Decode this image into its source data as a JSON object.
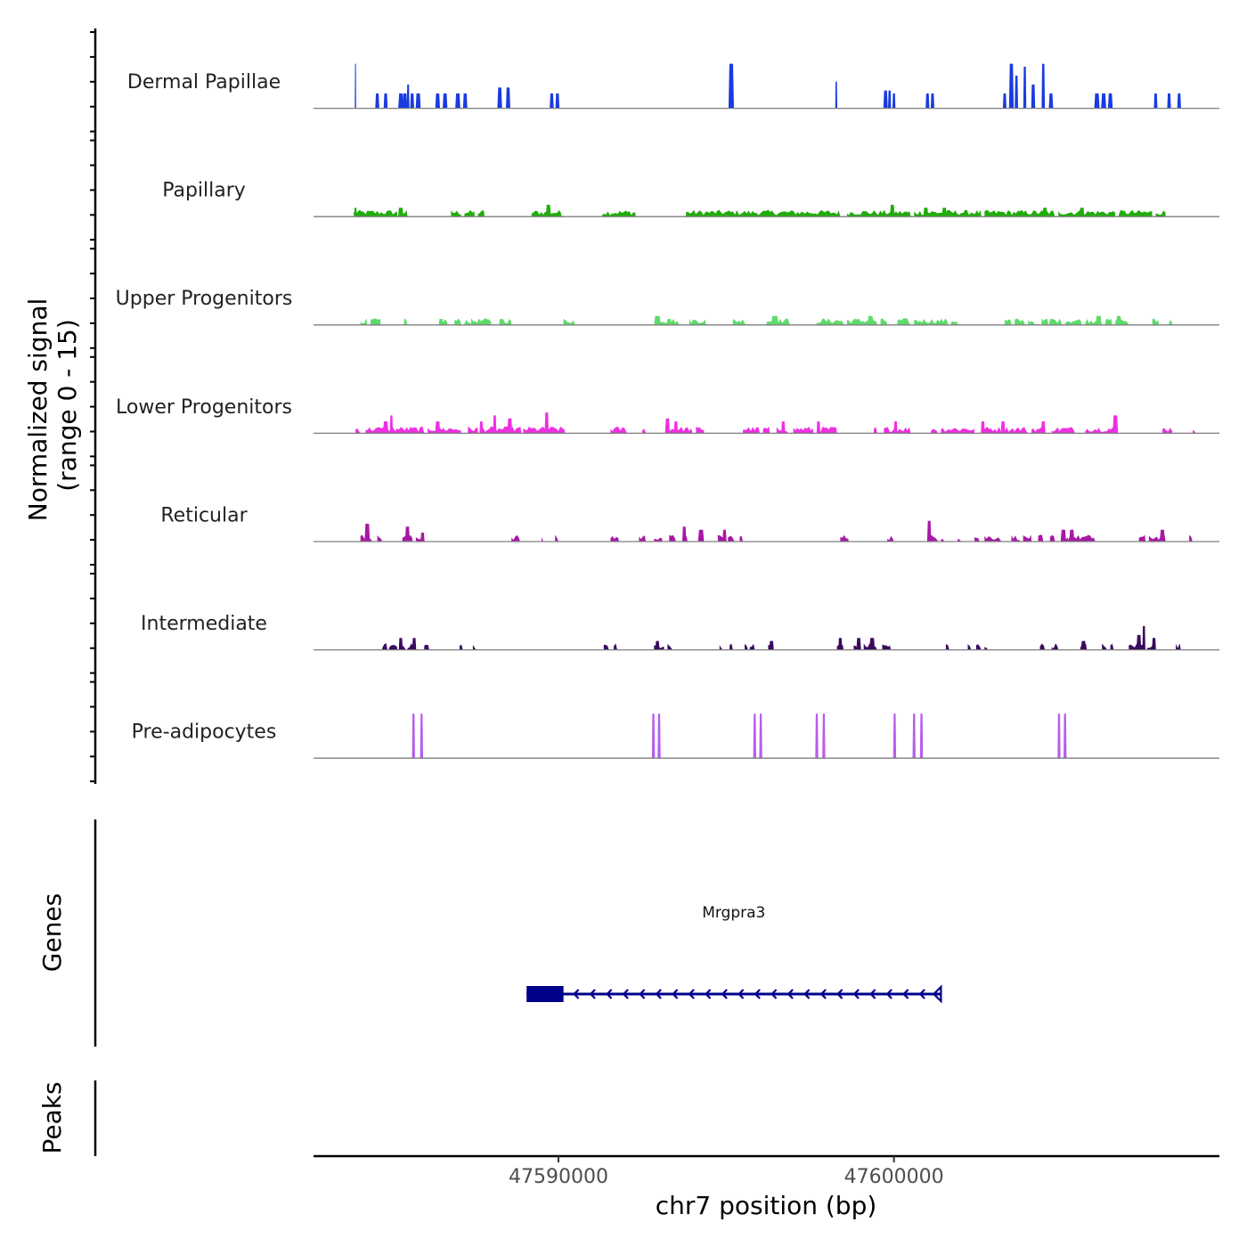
{
  "chart_data": {
    "type": "area",
    "y_axis_label_line1": "Normalized signal",
    "y_axis_label_line2": "(range 0 - 15)",
    "y_range": [
      0,
      15
    ],
    "x_axis_label": "chr7 position (bp)",
    "x_range": [
      47582700,
      47609700
    ],
    "x_ticks": [
      {
        "value": 47590000,
        "label": "47590000"
      },
      {
        "value": 47600000,
        "label": "47600000"
      }
    ],
    "genes_label": "Genes",
    "peaks_label": "Peaks",
    "gene": {
      "name": "Mrgpra3",
      "start": 47589050,
      "end": 47601400,
      "strand": "-",
      "exon_thick": [
        47589050,
        47590150
      ],
      "color": "#00008b"
    },
    "tracks": [
      {
        "name": "Dermal Papillae",
        "color": "#1a3be0",
        "peaks": [
          [
            47583950,
            15,
            40
          ],
          [
            47584600,
            5,
            120
          ],
          [
            47584850,
            5,
            120
          ],
          [
            47585300,
            5,
            150
          ],
          [
            47585420,
            5,
            150
          ],
          [
            47585520,
            8,
            80
          ],
          [
            47585640,
            5,
            120
          ],
          [
            47585820,
            5,
            150
          ],
          [
            47586400,
            5,
            140
          ],
          [
            47586620,
            5,
            140
          ],
          [
            47587000,
            5,
            150
          ],
          [
            47587220,
            5,
            130
          ],
          [
            47588250,
            7,
            140
          ],
          [
            47588500,
            7,
            130
          ],
          [
            47589800,
            5,
            120
          ],
          [
            47589970,
            5,
            120
          ],
          [
            47595150,
            15,
            160
          ],
          [
            47598280,
            9,
            60
          ],
          [
            47599750,
            6,
            130
          ],
          [
            47599870,
            6,
            90
          ],
          [
            47600000,
            5,
            90
          ],
          [
            47601000,
            5,
            110
          ],
          [
            47601150,
            5,
            110
          ],
          [
            47603300,
            5,
            110
          ],
          [
            47603500,
            15,
            140
          ],
          [
            47603650,
            11,
            100
          ],
          [
            47603900,
            14,
            90
          ],
          [
            47604150,
            8,
            120
          ],
          [
            47604450,
            15,
            100
          ],
          [
            47604680,
            5,
            130
          ],
          [
            47606050,
            5,
            160
          ],
          [
            47606250,
            5,
            150
          ],
          [
            47606450,
            5,
            140
          ],
          [
            47607800,
            5,
            110
          ],
          [
            47608200,
            5,
            110
          ],
          [
            47608500,
            5,
            110
          ]
        ]
      },
      {
        "name": "Papillary",
        "color": "#1fad0a",
        "noise": [
          [
            47583900,
            47585200
          ],
          [
            47585300,
            47585500
          ],
          [
            47586800,
            47587100
          ],
          [
            47587200,
            47587500
          ],
          [
            47587600,
            47587800
          ],
          [
            47589200,
            47590100
          ],
          [
            47591300,
            47592300
          ],
          [
            47593800,
            47598400
          ],
          [
            47598600,
            47600500
          ],
          [
            47600600,
            47602600
          ],
          [
            47602700,
            47604800
          ],
          [
            47604900,
            47606600
          ],
          [
            47606700,
            47607700
          ],
          [
            47607800,
            47608100
          ]
        ],
        "peaks": [
          [
            47583950,
            3,
            80
          ],
          [
            47585300,
            3,
            160
          ],
          [
            47589700,
            4,
            150
          ],
          [
            47599950,
            4,
            140
          ],
          [
            47600950,
            3,
            150
          ],
          [
            47601500,
            3,
            140
          ],
          [
            47604500,
            3,
            150
          ],
          [
            47605600,
            3,
            150
          ]
        ]
      },
      {
        "name": "Upper Progenitors",
        "color": "#5ddb6a",
        "noise": [
          [
            47584100,
            47584300
          ],
          [
            47584400,
            47584700
          ],
          [
            47585400,
            47585500
          ],
          [
            47586500,
            47586700
          ],
          [
            47586900,
            47587100
          ],
          [
            47587200,
            47587400
          ],
          [
            47587400,
            47588000
          ],
          [
            47588300,
            47588600
          ],
          [
            47590150,
            47590500
          ],
          [
            47592900,
            47593600
          ],
          [
            47593900,
            47594400
          ],
          [
            47595200,
            47595600
          ],
          [
            47596200,
            47596900
          ],
          [
            47597700,
            47598500
          ],
          [
            47598600,
            47599500
          ],
          [
            47599600,
            47599800
          ],
          [
            47600100,
            47600500
          ],
          [
            47600600,
            47601600
          ],
          [
            47601700,
            47601900
          ],
          [
            47603300,
            47603500
          ],
          [
            47603600,
            47603900
          ],
          [
            47604000,
            47604200
          ],
          [
            47604400,
            47604600
          ],
          [
            47604700,
            47605000
          ],
          [
            47605100,
            47605600
          ],
          [
            47605700,
            47606200
          ],
          [
            47606300,
            47606500
          ],
          [
            47606600,
            47607000
          ],
          [
            47607700,
            47607900
          ],
          [
            47608200,
            47608300
          ]
        ],
        "peaks": [
          [
            47584500,
            2,
            140
          ],
          [
            47586500,
            2,
            140
          ],
          [
            47588300,
            2,
            140
          ],
          [
            47592950,
            3,
            200
          ],
          [
            47593300,
            2,
            150
          ],
          [
            47596450,
            3,
            220
          ],
          [
            47599300,
            3,
            180
          ],
          [
            47604700,
            2,
            150
          ],
          [
            47606100,
            3,
            180
          ],
          [
            47606700,
            3,
            160
          ]
        ]
      },
      {
        "name": "Lower Progenitors",
        "color": "#ee2fe2",
        "noise": [
          [
            47583950,
            47584100
          ],
          [
            47584250,
            47586000
          ],
          [
            47586100,
            47587100
          ],
          [
            47587300,
            47587600
          ],
          [
            47587700,
            47588900
          ],
          [
            47588950,
            47590200
          ],
          [
            47591550,
            47592050
          ],
          [
            47592500,
            47592600
          ],
          [
            47593200,
            47594000
          ],
          [
            47594100,
            47594350
          ],
          [
            47595500,
            47596000
          ],
          [
            47596100,
            47596300
          ],
          [
            47596500,
            47596850
          ],
          [
            47597000,
            47597600
          ],
          [
            47597700,
            47598300
          ],
          [
            47599400,
            47599500
          ],
          [
            47599700,
            47600500
          ],
          [
            47601100,
            47601300
          ],
          [
            47601400,
            47602400
          ],
          [
            47602600,
            47604000
          ],
          [
            47604100,
            47604500
          ],
          [
            47604700,
            47605400
          ],
          [
            47605700,
            47606600
          ],
          [
            47608000,
            47608300
          ],
          [
            47608900,
            47609000
          ]
        ],
        "peaks": [
          [
            47584850,
            4,
            160
          ],
          [
            47585020,
            6,
            90
          ],
          [
            47586400,
            4,
            150
          ],
          [
            47587700,
            4,
            110
          ],
          [
            47588100,
            6,
            100
          ],
          [
            47588550,
            5,
            150
          ],
          [
            47589650,
            7,
            120
          ],
          [
            47593250,
            5,
            140
          ],
          [
            47593500,
            4,
            120
          ],
          [
            47596700,
            4,
            120
          ],
          [
            47597750,
            4,
            110
          ],
          [
            47600050,
            4,
            110
          ],
          [
            47602650,
            4,
            120
          ],
          [
            47603250,
            4,
            130
          ],
          [
            47604450,
            4,
            130
          ],
          [
            47606600,
            6,
            160
          ]
        ]
      },
      {
        "name": "Reticular",
        "color": "#a818a6",
        "noise": [
          [
            47584100,
            47584450
          ],
          [
            47584600,
            47584750
          ],
          [
            47585350,
            47585650
          ],
          [
            47585750,
            47585950
          ],
          [
            47588600,
            47588850
          ],
          [
            47589500,
            47589550
          ],
          [
            47589900,
            47590000
          ],
          [
            47591550,
            47591800
          ],
          [
            47592400,
            47592600
          ],
          [
            47592850,
            47593100
          ],
          [
            47593300,
            47593500
          ],
          [
            47593700,
            47593850
          ],
          [
            47594750,
            47595000
          ],
          [
            47595050,
            47595250
          ],
          [
            47595400,
            47595500
          ],
          [
            47598400,
            47598650
          ],
          [
            47599800,
            47600000
          ],
          [
            47601000,
            47601300
          ],
          [
            47601400,
            47601500
          ],
          [
            47601900,
            47602000
          ],
          [
            47602400,
            47602550
          ],
          [
            47602700,
            47603200
          ],
          [
            47603500,
            47603750
          ],
          [
            47603850,
            47604100
          ],
          [
            47604300,
            47604450
          ],
          [
            47604650,
            47604800
          ],
          [
            47605000,
            47605200
          ],
          [
            47605200,
            47606000
          ],
          [
            47607300,
            47607500
          ],
          [
            47607600,
            47608100
          ],
          [
            47608800,
            47608900
          ]
        ],
        "peaks": [
          [
            47584300,
            6,
            160
          ],
          [
            47585500,
            5,
            140
          ],
          [
            47585950,
            3,
            120
          ],
          [
            47593750,
            5,
            120
          ],
          [
            47594250,
            4,
            180
          ],
          [
            47594950,
            4,
            120
          ],
          [
            47601050,
            7,
            120
          ],
          [
            47605050,
            4,
            160
          ],
          [
            47605300,
            4,
            150
          ],
          [
            47608000,
            4,
            150
          ]
        ]
      },
      {
        "name": "Intermediate",
        "color": "#3b0a5e",
        "noise": [
          [
            47584750,
            47584900
          ],
          [
            47584950,
            47585200
          ],
          [
            47585300,
            47585450
          ],
          [
            47585500,
            47585750
          ],
          [
            47586000,
            47586150
          ],
          [
            47587050,
            47587150
          ],
          [
            47587450,
            47587550
          ],
          [
            47591350,
            47591500
          ],
          [
            47591650,
            47591750
          ],
          [
            47592850,
            47593150
          ],
          [
            47593250,
            47593400
          ],
          [
            47594800,
            47594900
          ],
          [
            47595100,
            47595200
          ],
          [
            47595550,
            47595650
          ],
          [
            47595700,
            47595850
          ],
          [
            47596250,
            47596400
          ],
          [
            47598300,
            47598500
          ],
          [
            47598800,
            47598950
          ],
          [
            47599100,
            47599500
          ],
          [
            47599650,
            47599900
          ],
          [
            47601550,
            47601650
          ],
          [
            47602200,
            47602300
          ],
          [
            47602450,
            47602600
          ],
          [
            47602700,
            47602800
          ],
          [
            47604350,
            47604500
          ],
          [
            47604700,
            47604900
          ],
          [
            47605550,
            47605750
          ],
          [
            47606200,
            47606350
          ],
          [
            47606450,
            47606550
          ],
          [
            47607000,
            47607500
          ],
          [
            47607550,
            47607800
          ],
          [
            47608400,
            47608550
          ]
        ],
        "peaks": [
          [
            47585300,
            4,
            120
          ],
          [
            47585700,
            4,
            120
          ],
          [
            47592950,
            3,
            130
          ],
          [
            47596350,
            3,
            140
          ],
          [
            47598400,
            4,
            120
          ],
          [
            47598950,
            4,
            140
          ],
          [
            47599350,
            4,
            160
          ],
          [
            47605650,
            3,
            150
          ],
          [
            47607300,
            5,
            140
          ],
          [
            47607450,
            8,
            90
          ],
          [
            47607750,
            4,
            120
          ]
        ]
      },
      {
        "name": "Pre-adipocytes",
        "color": "#b65ded",
        "peaks": [
          [
            47585680,
            15,
            90
          ],
          [
            47585920,
            15,
            90
          ],
          [
            47592830,
            15,
            90
          ],
          [
            47593000,
            15,
            90
          ],
          [
            47595850,
            15,
            90
          ],
          [
            47596030,
            15,
            90
          ],
          [
            47597700,
            15,
            90
          ],
          [
            47597910,
            15,
            90
          ],
          [
            47600020,
            15,
            90
          ],
          [
            47600010,
            15,
            30
          ],
          [
            47600600,
            15,
            90
          ],
          [
            47600820,
            15,
            90
          ],
          [
            47604920,
            15,
            90
          ],
          [
            47605100,
            15,
            90
          ]
        ]
      }
    ]
  }
}
